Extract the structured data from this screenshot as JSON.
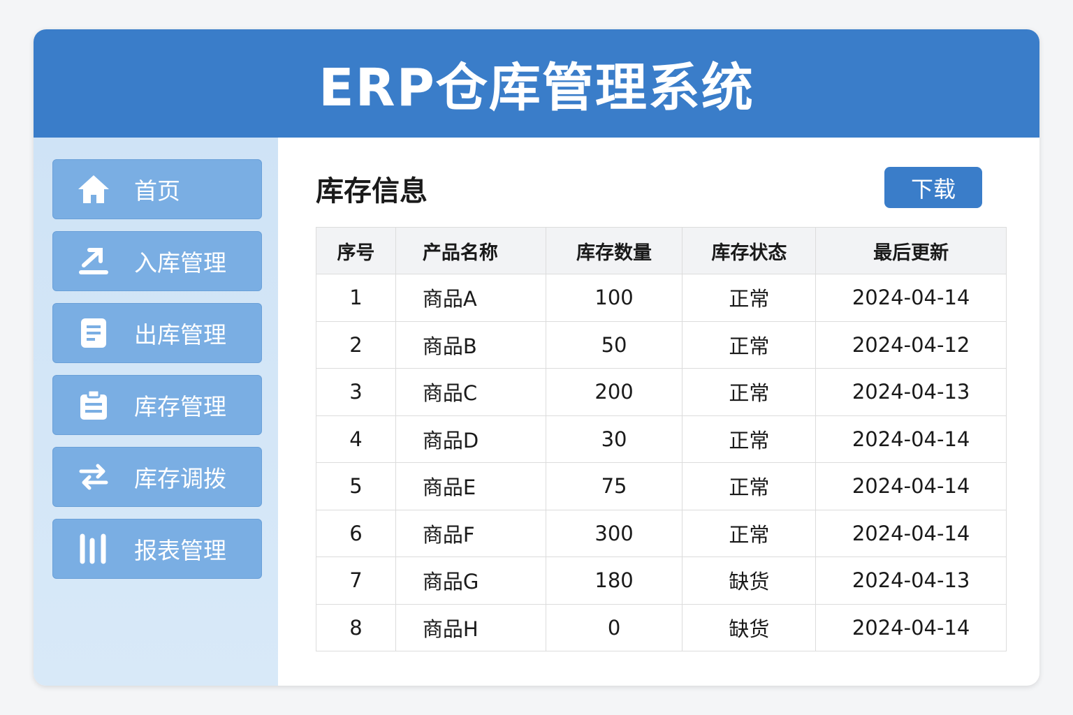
{
  "app": {
    "title": "ERP仓库管理系统"
  },
  "sidebar": {
    "items": [
      {
        "label": "首页",
        "icon": "home-icon"
      },
      {
        "label": "入库管理",
        "icon": "upload-icon"
      },
      {
        "label": "出库管理",
        "icon": "document-icon"
      },
      {
        "label": "库存管理",
        "icon": "clipboard-icon"
      },
      {
        "label": "库存调拨",
        "icon": "transfer-arrows-icon"
      },
      {
        "label": "报表管理",
        "icon": "bar-chart-icon"
      }
    ]
  },
  "main": {
    "title": "库存信息",
    "download_label": "下载",
    "columns": [
      "序号",
      "产品名称",
      "库存数量",
      "库存状态",
      "最后更新"
    ],
    "rows": [
      [
        "1",
        "商品A",
        "100",
        "正常",
        "2024-04-14"
      ],
      [
        "2",
        "商品B",
        "50",
        "正常",
        "2024-04-12"
      ],
      [
        "3",
        "商品C",
        "200",
        "正常",
        "2024-04-13"
      ],
      [
        "4",
        "商品D",
        "30",
        "正常",
        "2024-04-14"
      ],
      [
        "5",
        "商品E",
        "75",
        "正常",
        "2024-04-14"
      ],
      [
        "6",
        "商品F",
        "300",
        "正常",
        "2024-04-14"
      ],
      [
        "7",
        "商品G",
        "180",
        "缺货",
        "2024-04-13"
      ],
      [
        "8",
        "商品H",
        "0",
        "缺货",
        "2024-04-14"
      ]
    ]
  },
  "colors": {
    "header": "#3a7dc9",
    "nav": "#7aaee3",
    "sidebar": "#d5e7f7"
  }
}
